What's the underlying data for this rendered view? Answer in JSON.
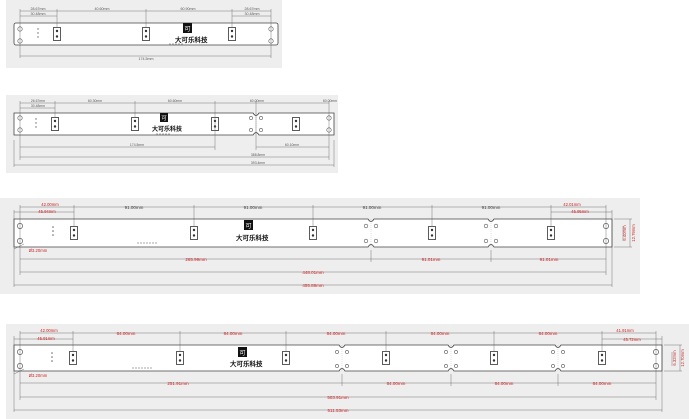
{
  "logo_text": "大可乐科技",
  "logo_glyph": "可",
  "drawings": [
    {
      "id": "drawing-1",
      "top_dims": [
        "28.67mm",
        "30.48mm",
        "40.60mm",
        "60.90mm",
        "28.67mm",
        "30.48mm"
      ],
      "bottom_dims": [
        "174.5mm"
      ]
    },
    {
      "id": "drawing-2",
      "top_dims": [
        "26.67mm",
        "30.48mm",
        "60.30mm",
        "60.60mm",
        "60.00mm",
        "60.00mm"
      ],
      "bottom_dims": [
        "174.5mm",
        "60.10mm",
        "388.8mm",
        "393.4mm"
      ]
    },
    {
      "id": "drawing-3",
      "top_dims": [
        "42.00mm",
        "45.94mm",
        "91.00mm",
        "91.00mm",
        "91.00mm",
        "91.00mm",
        "42.01mm",
        "45.95mm"
      ],
      "side_dims": [
        "Ø3.20mm",
        "12.79mm",
        "6.40mm"
      ],
      "bottom_dims": [
        "265.99mm",
        "91.01mm",
        "91.01mm",
        "448.01mm",
        "455.88mm"
      ]
    },
    {
      "id": "drawing-4",
      "top_dims": [
        "42.00mm",
        "45.91mm",
        "84.00mm",
        "84.00mm",
        "84.00mm",
        "84.00mm",
        "84.00mm",
        "41.91mm",
        "45.72mm"
      ],
      "side_dims": [
        "Ø3.20mm",
        "12.70mm",
        "6.32mm"
      ],
      "bottom_dims": [
        "251.91mm",
        "84.00mm",
        "84.00mm",
        "84.00mm",
        "503.91mm",
        "511.53mm"
      ]
    }
  ]
}
